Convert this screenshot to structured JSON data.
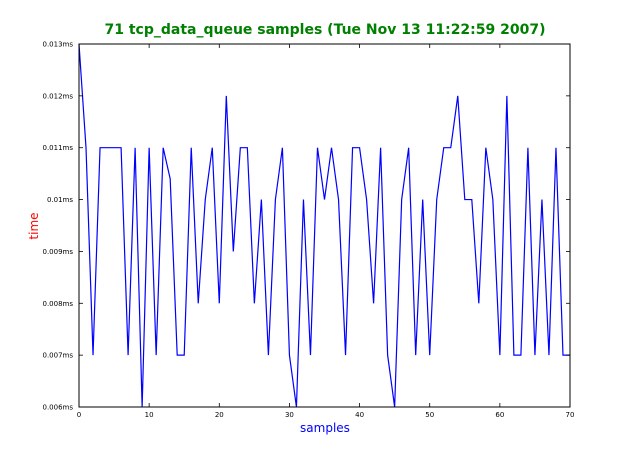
{
  "chart_data": {
    "type": "line",
    "title": "71 tcp_data_queue samples (Tue Nov 13 11:22:59 2007)",
    "xlabel": "samples",
    "ylabel": "time",
    "xlim": [
      0,
      70
    ],
    "ylim": [
      0.006,
      0.013
    ],
    "x_ticks": [
      0,
      10,
      20,
      30,
      40,
      50,
      60,
      70
    ],
    "x_tick_labels": [
      "0",
      "10",
      "20",
      "30",
      "40",
      "50",
      "60",
      "70"
    ],
    "y_ticks": [
      0.006,
      0.007,
      0.008,
      0.009,
      0.01,
      0.011,
      0.012,
      0.013
    ],
    "y_tick_labels": [
      "0.006ms",
      "0.007ms",
      "0.008ms",
      "0.009ms",
      "0.01ms",
      "0.011ms",
      "0.012ms",
      "0.013ms"
    ],
    "grid": false,
    "series": [
      {
        "color": "#0000ff",
        "x": [
          0,
          1,
          2,
          3,
          4,
          5,
          6,
          7,
          8,
          9,
          10,
          11,
          12,
          13,
          14,
          15,
          16,
          17,
          18,
          19,
          20,
          21,
          22,
          23,
          24,
          25,
          26,
          27,
          28,
          29,
          30,
          31,
          32,
          33,
          34,
          35,
          36,
          37,
          38,
          39,
          40,
          41,
          42,
          43,
          44,
          45,
          46,
          47,
          48,
          49,
          50,
          51,
          52,
          53,
          54,
          55,
          56,
          57,
          58,
          59,
          60,
          61,
          62,
          63,
          64,
          65,
          66,
          67,
          68,
          69,
          70
        ],
        "values": [
          0.013,
          0.011,
          0.007,
          0.011,
          0.011,
          0.011,
          0.011,
          0.007,
          0.011,
          0.006,
          0.011,
          0.007,
          0.011,
          0.0104,
          0.007,
          0.007,
          0.011,
          0.008,
          0.01,
          0.011,
          0.008,
          0.012,
          0.009,
          0.011,
          0.011,
          0.008,
          0.01,
          0.007,
          0.01,
          0.011,
          0.007,
          0.006,
          0.01,
          0.007,
          0.011,
          0.01,
          0.011,
          0.01,
          0.007,
          0.011,
          0.011,
          0.01,
          0.008,
          0.011,
          0.007,
          0.006,
          0.01,
          0.011,
          0.007,
          0.01,
          0.007,
          0.01,
          0.011,
          0.011,
          0.012,
          0.01,
          0.01,
          0.008,
          0.011,
          0.01,
          0.007,
          0.012,
          0.007,
          0.007,
          0.011,
          0.007,
          0.01,
          0.007,
          0.011,
          0.007,
          0.007
        ]
      }
    ],
    "colors": {
      "title": "#008000",
      "xlabel": "#0000ff",
      "ylabel": "#ff0000",
      "line": "#0000ff"
    }
  }
}
